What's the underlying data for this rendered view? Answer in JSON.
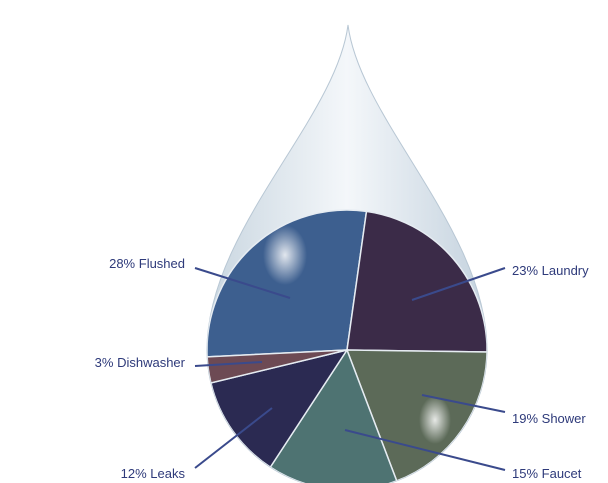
{
  "chart_data": {
    "type": "pie",
    "categories": [
      "Flushed",
      "Laundry",
      "Shower",
      "Faucet",
      "Leaks",
      "Dishwasher"
    ],
    "values": [
      28,
      23,
      19,
      15,
      12,
      3
    ],
    "value_labels": [
      "28%",
      "23%",
      "19%",
      "15%",
      "12%",
      "3%"
    ],
    "colors": [
      "#3d5f8f",
      "#3b2b48",
      "#5c6a58",
      "#4e7372",
      "#2b2a52",
      "#6d4a54"
    ]
  }
}
